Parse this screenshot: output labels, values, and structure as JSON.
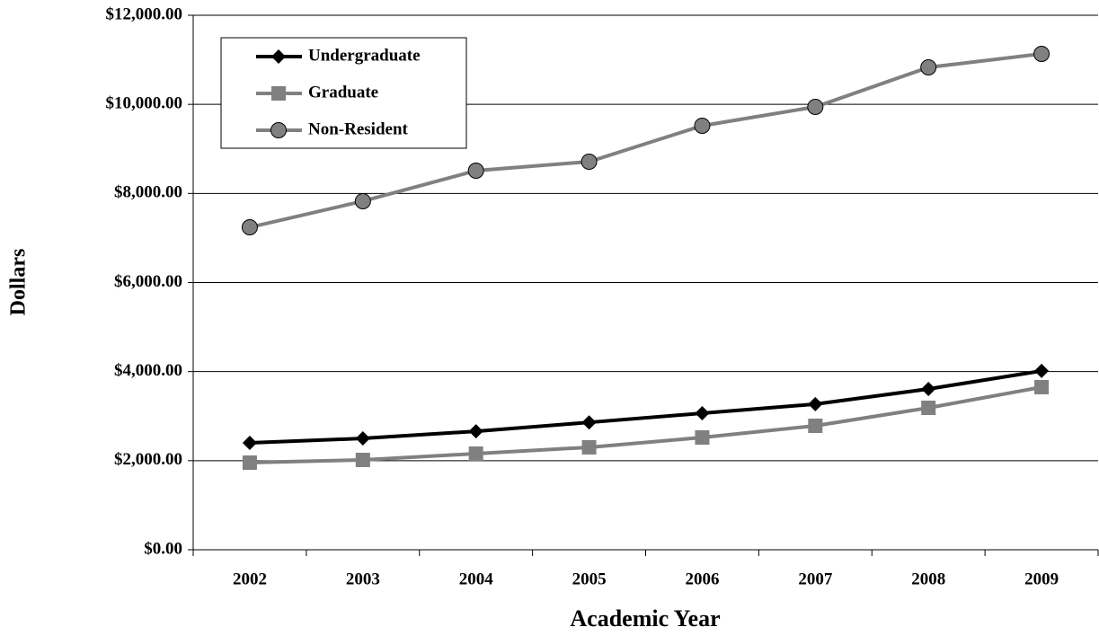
{
  "chart_data": {
    "type": "line",
    "x_label": "Academic Year",
    "y_label": "Dollars",
    "categories": [
      "2002",
      "2003",
      "2004",
      "2005",
      "2006",
      "2007",
      "2008",
      "2009"
    ],
    "series": [
      {
        "name": "Undergraduate",
        "color": "#000000",
        "marker": "diamond",
        "values": [
          2400,
          2500,
          2660,
          2860,
          3065,
          3270,
          3610,
          4015
        ]
      },
      {
        "name": "Graduate",
        "color": "#808080",
        "marker": "square",
        "values": [
          1956,
          2017,
          2158,
          2300,
          2521,
          2783,
          3187,
          3651
        ]
      },
      {
        "name": "Non-Resident",
        "color": "#808080",
        "marker": "circle",
        "values": [
          7240,
          7826,
          8511,
          8713,
          9520,
          9943,
          10830,
          11133
        ]
      }
    ],
    "ylim": [
      0,
      12000
    ],
    "yticks": [
      {
        "value": 0,
        "label": "$0.00"
      },
      {
        "value": 2000,
        "label": "$2,000.00"
      },
      {
        "value": 4000,
        "label": "$4,000.00"
      },
      {
        "value": 6000,
        "label": "$6,000.00"
      },
      {
        "value": 8000,
        "label": "$8,000.00"
      },
      {
        "value": 10000,
        "label": "$10,000.00"
      },
      {
        "value": 12000,
        "label": "$12,000.00"
      }
    ],
    "grid": true,
    "legend": "upper left"
  }
}
